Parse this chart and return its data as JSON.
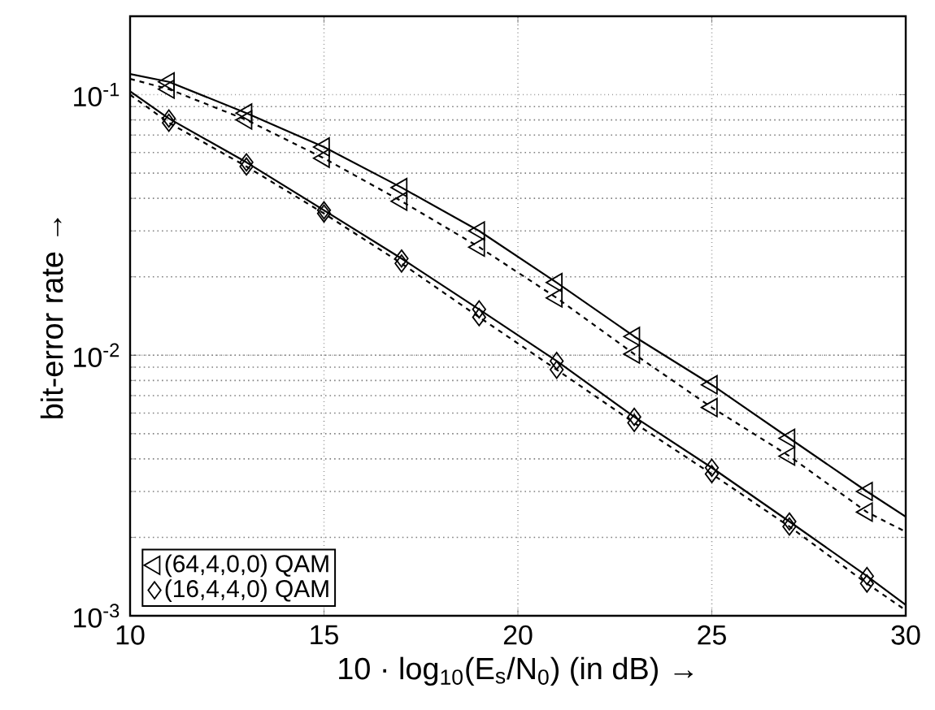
{
  "chart_data": {
    "type": "line",
    "xlabel": "10 · log$_{10}$(E$_{s}$/N$_{0}$)    (in dB) →",
    "ylabel": "bit-error rate →",
    "xlim": [
      10,
      30
    ],
    "xticks": [
      10,
      15,
      20,
      25,
      30
    ],
    "ylim": [
      0.001,
      0.2
    ],
    "log": "y",
    "grid": true,
    "legend": "bottom left",
    "yticks": [
      {
        "value": 0.001,
        "label": "10$^{-3}$"
      },
      {
        "value": 0.01,
        "label": "10$^{-2}$"
      },
      {
        "value": 0.1,
        "label": "10$^{-1}$"
      }
    ],
    "series": [
      {
        "line_style": "solid",
        "marker": "none",
        "color": "#000000",
        "x": [
          10,
          11,
          13,
          15,
          17,
          19,
          21,
          23,
          25,
          27,
          29,
          30
        ],
        "values": [
          0.12,
          0.112,
          0.085,
          0.063,
          0.044,
          0.03,
          0.019,
          0.0118,
          0.0077,
          0.0048,
          0.003,
          0.0024
        ]
      },
      {
        "line_style": "dashed",
        "marker": "none",
        "color": "#000000",
        "x": [
          10,
          11,
          13,
          15,
          17,
          19,
          21,
          23,
          25,
          27,
          29,
          30
        ],
        "values": [
          0.115,
          0.105,
          0.08,
          0.057,
          0.039,
          0.026,
          0.0166,
          0.0101,
          0.0063,
          0.0041,
          0.0025,
          0.0021
        ]
      },
      {
        "line_style": "solid",
        "marker": "none",
        "color": "#000000",
        "x": [
          10,
          11,
          13,
          15,
          17,
          19,
          21,
          23,
          25,
          27,
          29,
          30
        ],
        "values": [
          0.103,
          0.081,
          0.055,
          0.036,
          0.0235,
          0.015,
          0.0095,
          0.0058,
          0.0037,
          0.0023,
          0.00142,
          0.0011
        ]
      },
      {
        "line_style": "dashed",
        "marker": "none",
        "color": "#000000",
        "x": [
          10,
          11,
          13,
          15,
          17,
          19,
          21,
          23,
          25,
          27,
          29,
          30
        ],
        "values": [
          0.1,
          0.078,
          0.053,
          0.035,
          0.0225,
          0.014,
          0.0088,
          0.0055,
          0.0035,
          0.0022,
          0.00133,
          0.00105
        ]
      },
      {
        "type": "scatter",
        "name": "(64,4,0,0) QAM",
        "marker": "triangle",
        "color": "#000000",
        "x": [
          11,
          13,
          15,
          17,
          19,
          21,
          23,
          25,
          27,
          29
        ],
        "values": [
          0.112,
          0.085,
          0.063,
          0.044,
          0.03,
          0.019,
          0.0118,
          0.0077,
          0.0048,
          0.003
        ]
      },
      {
        "type": "scatter",
        "marker": "triangle",
        "color": "#000000",
        "x": [
          11,
          13,
          15,
          17,
          19,
          21,
          23,
          25,
          27,
          29
        ],
        "values": [
          0.105,
          0.08,
          0.057,
          0.039,
          0.026,
          0.0166,
          0.0101,
          0.0063,
          0.0041,
          0.0025
        ]
      },
      {
        "type": "scatter",
        "name": "(16,4,4,0) QAM",
        "marker": "diamond",
        "color": "#000000",
        "x": [
          11,
          13,
          15,
          17,
          19,
          21,
          23,
          25,
          27,
          29
        ],
        "values": [
          0.081,
          0.055,
          0.036,
          0.0235,
          0.015,
          0.0095,
          0.0058,
          0.0037,
          0.0023,
          0.00142
        ]
      },
      {
        "type": "scatter",
        "marker": "diamond",
        "color": "#000000",
        "x": [
          11,
          13,
          15,
          17,
          19,
          21,
          23,
          25,
          27,
          29
        ],
        "values": [
          0.078,
          0.053,
          0.035,
          0.0225,
          0.014,
          0.0088,
          0.0055,
          0.0035,
          0.0022,
          0.00133
        ]
      }
    ]
  }
}
